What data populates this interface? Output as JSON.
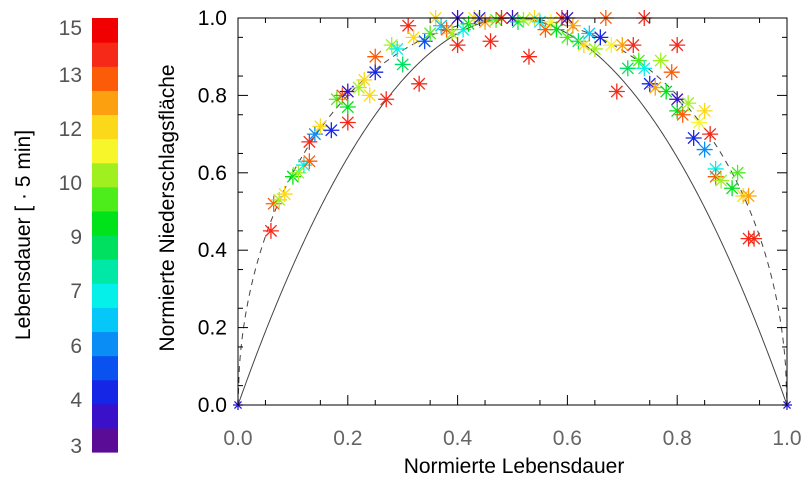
{
  "chart_data": {
    "type": "scatter",
    "xlabel": "Normierte Lebensdauer",
    "ylabel": "Normierte Niederschlagsfläche",
    "xlim": [
      0.0,
      1.0
    ],
    "ylim": [
      0.0,
      1.0
    ],
    "x_ticks": [
      "0.0",
      "0.2",
      "0.4",
      "0.6",
      "0.8",
      "1.0"
    ],
    "y_ticks": [
      "0.0",
      "0.2",
      "0.4",
      "0.6",
      "0.8",
      "1.0"
    ],
    "grid": false,
    "marker": "asterisk",
    "colorbar": {
      "label": "Lebensdauer [ · 5 min]",
      "tick_labels": [
        "3",
        "4",
        "6",
        "7",
        "9",
        "10",
        "12",
        "13",
        "15"
      ],
      "colors": [
        "#5a0c96",
        "#3a10c8",
        "#1626e6",
        "#0a52f0",
        "#0a8ef6",
        "#06c8f8",
        "#04f0e8",
        "#00e8a6",
        "#00e060",
        "#00e21a",
        "#4ced1a",
        "#a0f020",
        "#f6f62a",
        "#fcd81a",
        "#fca010",
        "#fc5c08",
        "#f62818",
        "#f00000"
      ]
    },
    "curves": [
      {
        "style": "solid",
        "description": "4x(1-x)"
      },
      {
        "style": "dashed",
        "description": "2*sqrt(x(1-x))"
      }
    ],
    "points": [
      {
        "x": 0.06,
        "y": 0.45,
        "color": "#f62818"
      },
      {
        "x": 0.065,
        "y": 0.52,
        "color": "#fc5c08"
      },
      {
        "x": 0.075,
        "y": 0.53,
        "color": "#a0f020"
      },
      {
        "x": 0.085,
        "y": 0.545,
        "color": "#fcd81a"
      },
      {
        "x": 0.1,
        "y": 0.59,
        "color": "#00e21a"
      },
      {
        "x": 0.11,
        "y": 0.6,
        "color": "#a0f020"
      },
      {
        "x": 0.12,
        "y": 0.62,
        "color": "#04f0e8"
      },
      {
        "x": 0.13,
        "y": 0.63,
        "color": "#fc5c08"
      },
      {
        "x": 0.13,
        "y": 0.68,
        "color": "#f62818"
      },
      {
        "x": 0.14,
        "y": 0.7,
        "color": "#0a8ef6"
      },
      {
        "x": 0.15,
        "y": 0.72,
        "color": "#fcd81a"
      },
      {
        "x": 0.17,
        "y": 0.71,
        "color": "#1626e6"
      },
      {
        "x": 0.18,
        "y": 0.79,
        "color": "#4ced1a"
      },
      {
        "x": 0.19,
        "y": 0.8,
        "color": "#fc5c08"
      },
      {
        "x": 0.2,
        "y": 0.81,
        "color": "#3a10c8"
      },
      {
        "x": 0.2,
        "y": 0.77,
        "color": "#00e21a"
      },
      {
        "x": 0.2,
        "y": 0.73,
        "color": "#f62818"
      },
      {
        "x": 0.22,
        "y": 0.82,
        "color": "#a0f020"
      },
      {
        "x": 0.23,
        "y": 0.84,
        "color": "#fcd81a"
      },
      {
        "x": 0.24,
        "y": 0.8,
        "color": "#fcd81a"
      },
      {
        "x": 0.25,
        "y": 0.86,
        "color": "#1626e6"
      },
      {
        "x": 0.25,
        "y": 0.9,
        "color": "#fc5c08"
      },
      {
        "x": 0.27,
        "y": 0.79,
        "color": "#f62818"
      },
      {
        "x": 0.28,
        "y": 0.93,
        "color": "#a0f020"
      },
      {
        "x": 0.29,
        "y": 0.92,
        "color": "#04f0e8"
      },
      {
        "x": 0.3,
        "y": 0.88,
        "color": "#00e060"
      },
      {
        "x": 0.31,
        "y": 0.98,
        "color": "#f62818"
      },
      {
        "x": 0.32,
        "y": 0.95,
        "color": "#fcd81a"
      },
      {
        "x": 0.33,
        "y": 0.83,
        "color": "#f62818"
      },
      {
        "x": 0.34,
        "y": 0.94,
        "color": "#0a52f0"
      },
      {
        "x": 0.35,
        "y": 0.96,
        "color": "#4ced1a"
      },
      {
        "x": 0.36,
        "y": 1.0,
        "color": "#fcd81a"
      },
      {
        "x": 0.37,
        "y": 0.98,
        "color": "#06c8f8"
      },
      {
        "x": 0.38,
        "y": 0.97,
        "color": "#fc5c08"
      },
      {
        "x": 0.39,
        "y": 0.96,
        "color": "#a0f020"
      },
      {
        "x": 0.4,
        "y": 1.0,
        "color": "#3a10c8"
      },
      {
        "x": 0.4,
        "y": 0.93,
        "color": "#f62818"
      },
      {
        "x": 0.41,
        "y": 0.97,
        "color": "#04f0e8"
      },
      {
        "x": 0.42,
        "y": 0.985,
        "color": "#00e21a"
      },
      {
        "x": 0.43,
        "y": 1.0,
        "color": "#fcd81a"
      },
      {
        "x": 0.44,
        "y": 1.0,
        "color": "#1626e6"
      },
      {
        "x": 0.45,
        "y": 0.99,
        "color": "#fca010"
      },
      {
        "x": 0.46,
        "y": 0.94,
        "color": "#f62818"
      },
      {
        "x": 0.47,
        "y": 0.995,
        "color": "#4ced1a"
      },
      {
        "x": 0.48,
        "y": 1.0,
        "color": "#f62818"
      },
      {
        "x": 0.5,
        "y": 1.0,
        "color": "#3a10c8"
      },
      {
        "x": 0.51,
        "y": 0.99,
        "color": "#00e060"
      },
      {
        "x": 0.52,
        "y": 0.995,
        "color": "#a0f020"
      },
      {
        "x": 0.53,
        "y": 0.9,
        "color": "#f62818"
      },
      {
        "x": 0.54,
        "y": 1.0,
        "color": "#fcd81a"
      },
      {
        "x": 0.55,
        "y": 0.99,
        "color": "#04f0e8"
      },
      {
        "x": 0.56,
        "y": 0.97,
        "color": "#fc5c08"
      },
      {
        "x": 0.57,
        "y": 0.99,
        "color": "#f6f62a"
      },
      {
        "x": 0.58,
        "y": 0.97,
        "color": "#00e21a"
      },
      {
        "x": 0.59,
        "y": 1.0,
        "color": "#f62818"
      },
      {
        "x": 0.6,
        "y": 1.0,
        "color": "#3a10c8"
      },
      {
        "x": 0.6,
        "y": 0.95,
        "color": "#4ced1a"
      },
      {
        "x": 0.61,
        "y": 0.98,
        "color": "#fca010"
      },
      {
        "x": 0.62,
        "y": 0.94,
        "color": "#00e060"
      },
      {
        "x": 0.63,
        "y": 0.93,
        "color": "#fcd81a"
      },
      {
        "x": 0.64,
        "y": 0.96,
        "color": "#06c8f8"
      },
      {
        "x": 0.65,
        "y": 0.92,
        "color": "#a0f020"
      },
      {
        "x": 0.66,
        "y": 0.95,
        "color": "#1626e6"
      },
      {
        "x": 0.67,
        "y": 1.0,
        "color": "#fc5c08"
      },
      {
        "x": 0.68,
        "y": 0.93,
        "color": "#f6f62a"
      },
      {
        "x": 0.69,
        "y": 0.81,
        "color": "#f62818"
      },
      {
        "x": 0.7,
        "y": 0.93,
        "color": "#fca010"
      },
      {
        "x": 0.71,
        "y": 0.87,
        "color": "#00e060"
      },
      {
        "x": 0.72,
        "y": 0.93,
        "color": "#f62818"
      },
      {
        "x": 0.73,
        "y": 0.89,
        "color": "#4ced1a"
      },
      {
        "x": 0.74,
        "y": 1.0,
        "color": "#f62818"
      },
      {
        "x": 0.74,
        "y": 0.87,
        "color": "#04f0e8"
      },
      {
        "x": 0.75,
        "y": 0.83,
        "color": "#1626e6"
      },
      {
        "x": 0.76,
        "y": 0.82,
        "color": "#fca010"
      },
      {
        "x": 0.77,
        "y": 0.89,
        "color": "#a0f020"
      },
      {
        "x": 0.78,
        "y": 0.81,
        "color": "#00e21a"
      },
      {
        "x": 0.79,
        "y": 0.86,
        "color": "#fc5c08"
      },
      {
        "x": 0.8,
        "y": 0.93,
        "color": "#f62818"
      },
      {
        "x": 0.8,
        "y": 0.79,
        "color": "#3a10c8"
      },
      {
        "x": 0.8,
        "y": 0.76,
        "color": "#00e21a"
      },
      {
        "x": 0.81,
        "y": 0.75,
        "color": "#fc5c08"
      },
      {
        "x": 0.82,
        "y": 0.78,
        "color": "#a0f020"
      },
      {
        "x": 0.83,
        "y": 0.69,
        "color": "#1626e6"
      },
      {
        "x": 0.84,
        "y": 0.73,
        "color": "#f6f62a"
      },
      {
        "x": 0.85,
        "y": 0.76,
        "color": "#fcd81a"
      },
      {
        "x": 0.85,
        "y": 0.66,
        "color": "#0a8ef6"
      },
      {
        "x": 0.86,
        "y": 0.7,
        "color": "#f62818"
      },
      {
        "x": 0.87,
        "y": 0.61,
        "color": "#04f0e8"
      },
      {
        "x": 0.87,
        "y": 0.59,
        "color": "#fc5c08"
      },
      {
        "x": 0.88,
        "y": 0.58,
        "color": "#a0f020"
      },
      {
        "x": 0.9,
        "y": 0.56,
        "color": "#00e21a"
      },
      {
        "x": 0.91,
        "y": 0.6,
        "color": "#4ced1a"
      },
      {
        "x": 0.92,
        "y": 0.54,
        "color": "#fcd81a"
      },
      {
        "x": 0.93,
        "y": 0.54,
        "color": "#fca010"
      },
      {
        "x": 0.93,
        "y": 0.43,
        "color": "#f62818"
      },
      {
        "x": 0.94,
        "y": 0.43,
        "color": "#f62818"
      }
    ]
  }
}
